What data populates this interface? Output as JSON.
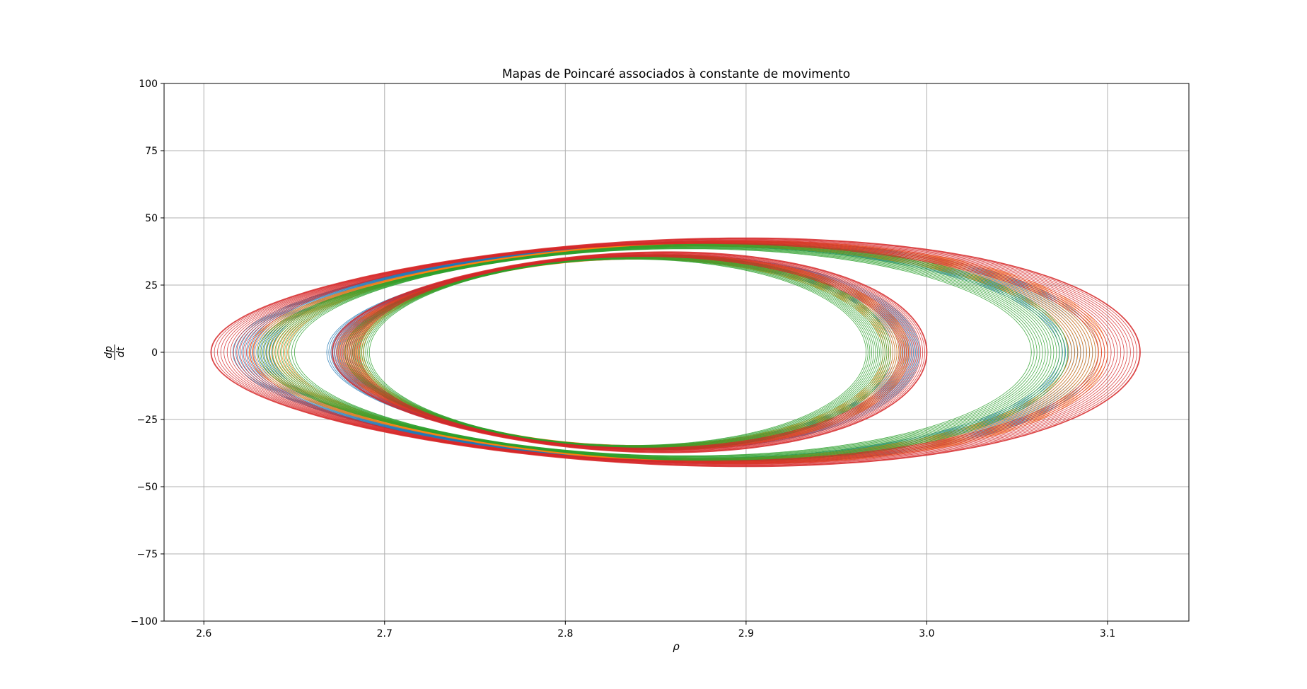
{
  "chart_data": {
    "type": "line",
    "title": "Mapas de Poincaré associados à constante de movimento",
    "xlabel": "ρ",
    "ylabel": {
      "numerator": "dp",
      "denominator": "dt"
    },
    "xlim": [
      2.578,
      3.145
    ],
    "ylim": [
      -100,
      100
    ],
    "xticks": [
      2.6,
      2.7,
      2.8,
      2.9,
      3.0,
      3.1
    ],
    "xtick_labels": [
      "2.6",
      "2.7",
      "2.8",
      "2.9",
      "3.0",
      "3.1"
    ],
    "yticks": [
      -100,
      -75,
      -50,
      -25,
      0,
      25,
      50,
      75,
      100
    ],
    "ytick_labels": [
      "−100",
      "−75",
      "−50",
      "−25",
      "0",
      "25",
      "50",
      "75",
      "100"
    ],
    "grid": true,
    "colors": [
      "#1f77b4",
      "#ff7f0e",
      "#2ca02c",
      "#d62728"
    ],
    "series": [
      {
        "color": "#1f77b4",
        "curves": [
          {
            "rho_min": 2.616,
            "rho_max": 3.095,
            "peak": 41
          },
          {
            "rho_min": 2.668,
            "rho_max": 2.996,
            "peak": 36
          }
        ]
      },
      {
        "color": "#ff7f0e",
        "curves": [
          {
            "rho_min": 2.625,
            "rho_max": 3.1,
            "peak": 41
          },
          {
            "rho_min": 2.674,
            "rho_max": 2.99,
            "peak": 36
          }
        ]
      },
      {
        "color": "#2ca02c",
        "curves": [
          {
            "rho_min": 2.63,
            "rho_max": 3.078,
            "peak": 40
          },
          {
            "rho_min": 2.678,
            "rho_max": 2.98,
            "peak": 36
          }
        ]
      },
      {
        "color": "#d62728",
        "curves": [
          {
            "rho_min": 2.604,
            "rho_max": 3.118,
            "peak": 42
          },
          {
            "rho_min": 2.671,
            "rho_max": 3.0,
            "peak": 37
          }
        ]
      }
    ]
  }
}
